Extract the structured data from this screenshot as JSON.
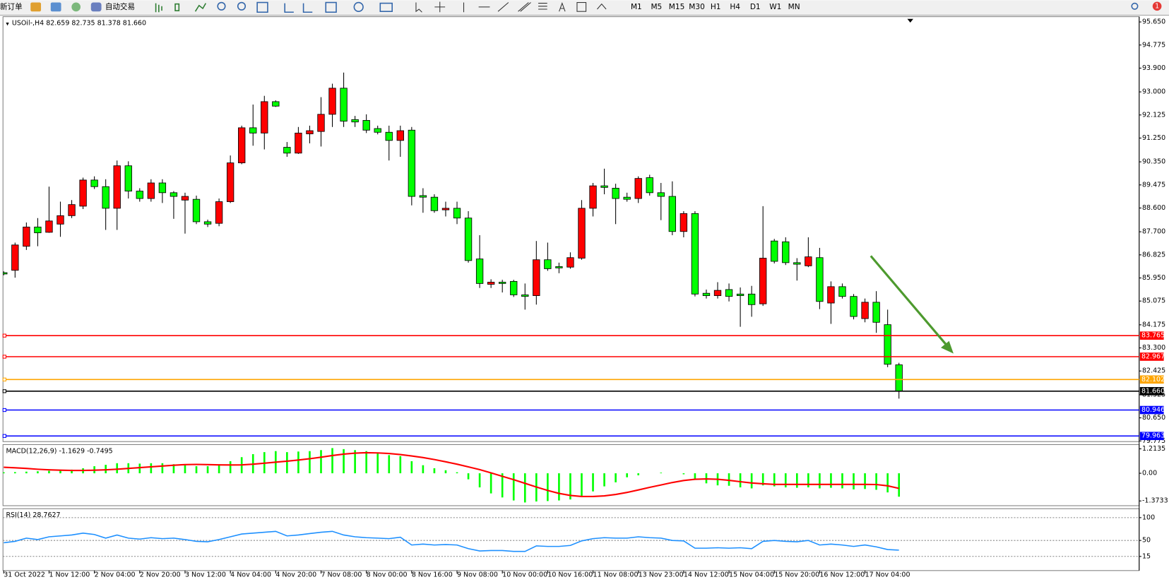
{
  "toolbar": {
    "new_order": "新订单",
    "auto_trading": "自动交易",
    "timeframes": [
      "M1",
      "M5",
      "M15",
      "M30",
      "H1",
      "H4",
      "D1",
      "W1",
      "MN"
    ],
    "notifications": "1"
  },
  "chart_data": [
    {
      "type": "candlestick",
      "title": "USOil-,H4 82.659 82.735 81.378 81.660",
      "categories": [
        "31 Oct 2022",
        null,
        null,
        null,
        "1 Nov 12:00",
        null,
        null,
        null,
        "2 Nov 04:00",
        null,
        null,
        null,
        "2 Nov 20:00",
        null,
        null,
        null,
        "3 Nov 12:00",
        null,
        null,
        null,
        "4 Nov 04:00",
        null,
        null,
        null,
        "4 Nov 20:00",
        null,
        null,
        null,
        "7 Nov 08:00",
        null,
        null,
        null,
        "8 Nov 00:00",
        null,
        null,
        null,
        "8 Nov 16:00",
        null,
        null,
        null,
        "9 Nov 08:00",
        null,
        null,
        null,
        "10 Nov 00:00",
        null,
        null,
        null,
        "10 Nov 16:00",
        null,
        null,
        null,
        "11 Nov 08:00",
        null,
        null,
        null,
        "13 Nov 23:00",
        null,
        null,
        null,
        "14 Nov 12:00",
        null,
        null,
        null,
        "15 Nov 04:00",
        null,
        null,
        null,
        "15 Nov 20:00",
        null,
        null,
        null,
        "16 Nov 12:00",
        null,
        null,
        null,
        "17 Nov 04:00",
        null,
        null,
        null
      ],
      "open": [
        86.15,
        86.24,
        87.15,
        87.88,
        87.68,
        87.99,
        88.31,
        88.67,
        89.66,
        89.41,
        88.59,
        90.2,
        89.24,
        88.96,
        89.55,
        89.18,
        88.9,
        88.93,
        88.08,
        88.02,
        88.84,
        90.31,
        91.64,
        91.44,
        92.63,
        90.9,
        90.68,
        91.41,
        91.5,
        92.15,
        93.14,
        91.95,
        91.92,
        91.61,
        91.47,
        91.16,
        91.55,
        89.07,
        89.01,
        88.53,
        88.59,
        88.22,
        86.67,
        85.71,
        85.79,
        85.82,
        85.31,
        85.28,
        86.64,
        86.38,
        86.36,
        86.7,
        88.59,
        89.44,
        89.35,
        89.01,
        88.96,
        89.75,
        89.18,
        89.04,
        87.71,
        88.39,
        85.37,
        85.28,
        85.51,
        85.34,
        85.34,
        84.97,
        87.35,
        87.32,
        86.53,
        86.41,
        86.72,
        85.0,
        85.62,
        85.25,
        84.41,
        85.03,
        84.18,
        82.659
      ],
      "high": [
        86.2,
        87.29,
        88.05,
        88.22,
        89.41,
        88.84,
        88.9,
        89.75,
        89.8,
        89.69,
        90.4,
        90.37,
        89.35,
        89.69,
        89.69,
        89.24,
        89.18,
        89.07,
        88.16,
        88.96,
        90.59,
        91.72,
        92.52,
        92.85,
        92.68,
        91.1,
        91.67,
        91.72,
        92.8,
        93.31,
        93.73,
        92.09,
        92.15,
        91.72,
        91.72,
        91.72,
        91.67,
        89.35,
        89.12,
        88.84,
        88.84,
        88.48,
        87.57,
        85.9,
        85.88,
        85.88,
        85.74,
        87.35,
        87.29,
        86.53,
        86.92,
        88.9,
        89.55,
        90.09,
        89.52,
        89.18,
        89.8,
        89.86,
        89.55,
        89.61,
        88.48,
        88.48,
        85.51,
        85.79,
        85.74,
        85.59,
        85.65,
        88.67,
        87.43,
        87.49,
        86.7,
        87.49,
        87.09,
        85.82,
        85.74,
        85.34,
        85.17,
        85.45,
        84.75,
        82.735
      ],
      "low": [
        86.05,
        85.96,
        87.01,
        87.15,
        87.66,
        87.51,
        88.22,
        88.56,
        89.32,
        87.77,
        87.77,
        88.96,
        88.84,
        88.84,
        88.79,
        88.19,
        87.63,
        87.99,
        87.88,
        87.91,
        88.79,
        90.26,
        90.96,
        90.82,
        92.43,
        90.54,
        90.65,
        91.05,
        90.93,
        91.67,
        91.67,
        91.67,
        91.44,
        91.39,
        90.4,
        90.54,
        88.7,
        88.42,
        88.42,
        88.28,
        87.99,
        86.53,
        85.57,
        85.57,
        85.4,
        85.23,
        84.75,
        84.94,
        86.22,
        86.13,
        86.3,
        86.64,
        88.28,
        89.12,
        87.99,
        88.84,
        88.79,
        89.07,
        88.14,
        87.57,
        87.49,
        85.25,
        85.17,
        85.17,
        85.06,
        84.1,
        84.48,
        84.89,
        86.5,
        86.44,
        85.85,
        86.36,
        84.77,
        84.21,
        85.17,
        84.38,
        84.27,
        83.87,
        82.57,
        81.378
      ],
      "close": [
        86.1,
        87.2,
        87.88,
        87.66,
        88.11,
        88.31,
        88.73,
        89.66,
        89.41,
        88.59,
        90.2,
        89.24,
        88.96,
        89.55,
        89.18,
        89.04,
        89.04,
        88.08,
        87.99,
        88.84,
        90.31,
        91.64,
        91.44,
        92.63,
        92.46,
        90.68,
        91.44,
        91.53,
        92.15,
        93.14,
        91.89,
        91.86,
        91.55,
        91.47,
        91.16,
        91.53,
        89.04,
        89.01,
        88.5,
        88.59,
        88.22,
        86.61,
        85.74,
        85.79,
        85.74,
        85.31,
        85.25,
        86.64,
        86.3,
        86.33,
        86.72,
        88.59,
        89.44,
        89.38,
        88.96,
        88.93,
        89.72,
        89.18,
        89.04,
        87.71,
        88.39,
        85.34,
        85.28,
        85.48,
        85.25,
        85.28,
        84.94,
        86.7,
        86.58,
        86.53,
        86.47,
        86.75,
        85.06,
        85.62,
        85.25,
        84.49,
        85.03,
        84.27,
        82.68,
        81.66
      ],
      "up_color": "#ff0000",
      "down_color": "#00ff00",
      "ylim": [
        79.75,
        95.85
      ],
      "yticks": [
        {
          "value": 95.65,
          "label": "95.650"
        },
        94.775,
        {
          "value": 93.9,
          "label": "93.900"
        },
        {
          "value": 93,
          "label": "93.000"
        },
        92.125,
        {
          "value": 91.25,
          "label": "91.250"
        },
        {
          "value": 90.35,
          "label": "90.350"
        },
        89.475,
        {
          "value": 88.6,
          "label": "88.600"
        },
        {
          "value": 87.7,
          "label": "87.700"
        },
        86.825,
        {
          "value": 85.95,
          "label": "85.950"
        },
        85.075,
        84.175,
        {
          "value": 83.3,
          "label": "83.300"
        },
        82.425,
        81.525,
        {
          "value": 80.65,
          "label": "80.650"
        },
        79.775
      ],
      "levels": [
        {
          "value": 83.765,
          "color": "#ff0000"
        },
        {
          "value": 82.967,
          "color": "#ff0000"
        },
        {
          "value": 82.102,
          "color": "#ffa500"
        },
        {
          "value": 81.66,
          "label": "81.660",
          "color": "#000000"
        },
        {
          "value": 80.946,
          "color": "#0000ff"
        },
        {
          "value": 79.963,
          "color": "#0000ff"
        }
      ]
    },
    {
      "type": "macd",
      "title": "MACD(12,26,9) -1.1629 -0.7495",
      "series": [
        {
          "color": "#00ff00",
          "values": [
            0.05,
            0.06,
            0.08,
            0.1,
            0.12,
            0.14,
            0.18,
            0.25,
            0.35,
            0.42,
            0.5,
            0.5,
            0.48,
            0.5,
            0.5,
            0.45,
            0.4,
            0.35,
            0.35,
            0.45,
            0.6,
            0.8,
            0.95,
            1.05,
            1.1,
            1.05,
            1.08,
            1.1,
            1.15,
            1.25,
            1.2,
            1.15,
            1.1,
            1.0,
            0.9,
            0.85,
            0.6,
            0.4,
            0.25,
            0.15,
            0.05,
            -0.3,
            -0.7,
            -1.0,
            -1.2,
            -1.35,
            -1.45,
            -1.4,
            -1.38,
            -1.35,
            -1.3,
            -1.15,
            -0.9,
            -0.65,
            -0.45,
            -0.2,
            -0.1,
            0.0,
            0.03,
            0.0,
            -0.05,
            -0.3,
            -0.5,
            -0.6,
            -0.62,
            -0.7,
            -0.75,
            -0.6,
            -0.65,
            -0.7,
            -0.72,
            -0.7,
            -0.75,
            -0.72,
            -0.75,
            -0.8,
            -0.78,
            -0.82,
            -0.95,
            -1.1629
          ]
        },
        {
          "color": "#ff0000",
          "values": [
            0.3,
            0.27,
            0.24,
            0.2,
            0.17,
            0.15,
            0.14,
            0.14,
            0.15,
            0.17,
            0.2,
            0.24,
            0.28,
            0.32,
            0.36,
            0.4,
            0.43,
            0.44,
            0.43,
            0.42,
            0.41,
            0.42,
            0.45,
            0.5,
            0.55,
            0.6,
            0.66,
            0.72,
            0.8,
            0.88,
            0.95,
            1.0,
            1.02,
            1.01,
            0.98,
            0.93,
            0.86,
            0.78,
            0.68,
            0.57,
            0.45,
            0.32,
            0.18,
            0.02,
            -0.15,
            -0.32,
            -0.5,
            -0.68,
            -0.85,
            -1.0,
            -1.1,
            -1.15,
            -1.15,
            -1.12,
            -1.05,
            -0.95,
            -0.83,
            -0.7,
            -0.58,
            -0.46,
            -0.36,
            -0.3,
            -0.28,
            -0.3,
            -0.35,
            -0.42,
            -0.48,
            -0.52,
            -0.55,
            -0.55,
            -0.55,
            -0.55,
            -0.55,
            -0.55,
            -0.55,
            -0.55,
            -0.55,
            -0.56,
            -0.62,
            -0.7495
          ]
        }
      ],
      "ylim": [
        -1.61,
        1.425
      ],
      "yticks": [
        1.2135,
        {
          "value": 0,
          "label": "0.00"
        },
        -1.3733
      ]
    },
    {
      "type": "line",
      "title": "RSI(14) 28.7627",
      "series": [
        {
          "color": "#1e90ff",
          "values": [
            45,
            48,
            55,
            52,
            58,
            60,
            62,
            66,
            63,
            55,
            62,
            55,
            53,
            56,
            54,
            55,
            52,
            48,
            47,
            52,
            58,
            64,
            66,
            68,
            70,
            60,
            62,
            65,
            68,
            70,
            62,
            58,
            56,
            55,
            54,
            57,
            40,
            42,
            40,
            41,
            40,
            32,
            27,
            28,
            28,
            26,
            26,
            38,
            37,
            37,
            39,
            49,
            54,
            56,
            55,
            55,
            58,
            56,
            55,
            50,
            49,
            33,
            33,
            34,
            33,
            34,
            32,
            48,
            50,
            48,
            47,
            50,
            40,
            42,
            40,
            37,
            40,
            36,
            30,
            28.7627
          ]
        }
      ],
      "ylim": [
        -16,
        119.6
      ],
      "yticks": [
        100,
        50,
        15
      ],
      "grid": true
    }
  ]
}
